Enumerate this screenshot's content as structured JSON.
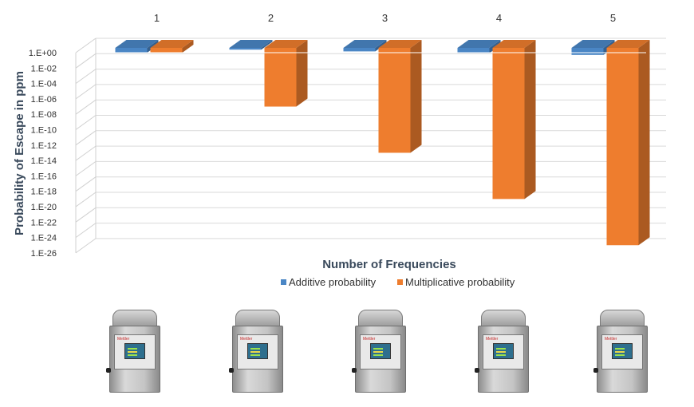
{
  "chart_data": {
    "type": "bar",
    "style": "3d-column",
    "title": "",
    "xlabel": "Number of Frequencies",
    "ylabel": "Probability of Escape in ppm",
    "categories": [
      "1",
      "2",
      "3",
      "4",
      "5"
    ],
    "y_scale": "log",
    "ylim": [
      1e-26,
      1
    ],
    "y_ticks": [
      "1.E+00",
      "1.E-02",
      "1.E-04",
      "1.E-06",
      "1.E-08",
      "1.E-10",
      "1.E-12",
      "1.E-14",
      "1.E-16",
      "1.E-18",
      "1.E-20",
      "1.E-22",
      "1.E-24",
      "1.E-26"
    ],
    "x_axis_position": "top",
    "grid": true,
    "legend_position": "bottom",
    "series": [
      {
        "name": "Additive probability",
        "color": "#4a86c5",
        "values": [
          1,
          2,
          3,
          4,
          5
        ]
      },
      {
        "name": "Multiplicative probability",
        "color": "#ee7d2e",
        "values": [
          1,
          1e-07,
          1e-13,
          1e-19,
          1e-25
        ]
      }
    ]
  },
  "devices": [
    {
      "name": "detector-1",
      "brand": "Mettler"
    },
    {
      "name": "detector-2",
      "brand": "Mettler"
    },
    {
      "name": "detector-3",
      "brand": "Mettler"
    },
    {
      "name": "detector-4",
      "brand": "Mettler"
    },
    {
      "name": "detector-5",
      "brand": "Mettler"
    }
  ]
}
